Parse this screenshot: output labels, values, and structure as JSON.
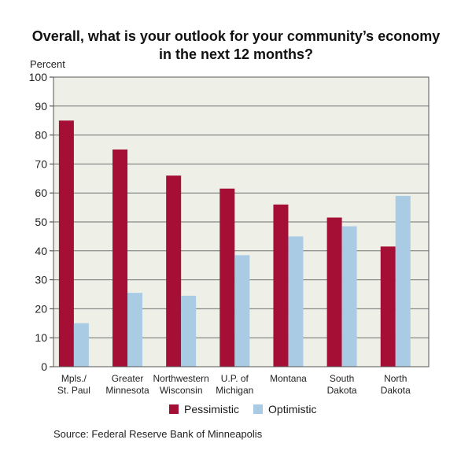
{
  "chart_data": {
    "type": "bar",
    "title_lines": [
      "Overall, what is your outlook for your community’s economy",
      "in the next 12 months?"
    ],
    "ylabel": "Percent",
    "ylim": [
      0,
      100
    ],
    "yticks": [
      0,
      10,
      20,
      30,
      40,
      50,
      60,
      70,
      80,
      90,
      100
    ],
    "grid": true,
    "categories": [
      [
        "Mpls./",
        "St. Paul"
      ],
      [
        "Greater",
        "Minnesota"
      ],
      [
        "Northwestern",
        "Wisconsin"
      ],
      [
        "U.P. of",
        "Michigan"
      ],
      [
        "Montana"
      ],
      [
        "South",
        "Dakota"
      ],
      [
        "North",
        "Dakota"
      ]
    ],
    "series": [
      {
        "name": "Pessimistic",
        "color": "#a50f35",
        "values": [
          85,
          75,
          66,
          61.5,
          56,
          51.5,
          41.5
        ]
      },
      {
        "name": "Optimistic",
        "color": "#a9cbe3",
        "values": [
          15,
          25.5,
          24.5,
          38.5,
          45,
          48.5,
          59
        ]
      }
    ],
    "legend_position": "bottom",
    "source": "Source: Federal Reserve Bank of Minneapolis",
    "plot_background": "#eef0e8"
  }
}
